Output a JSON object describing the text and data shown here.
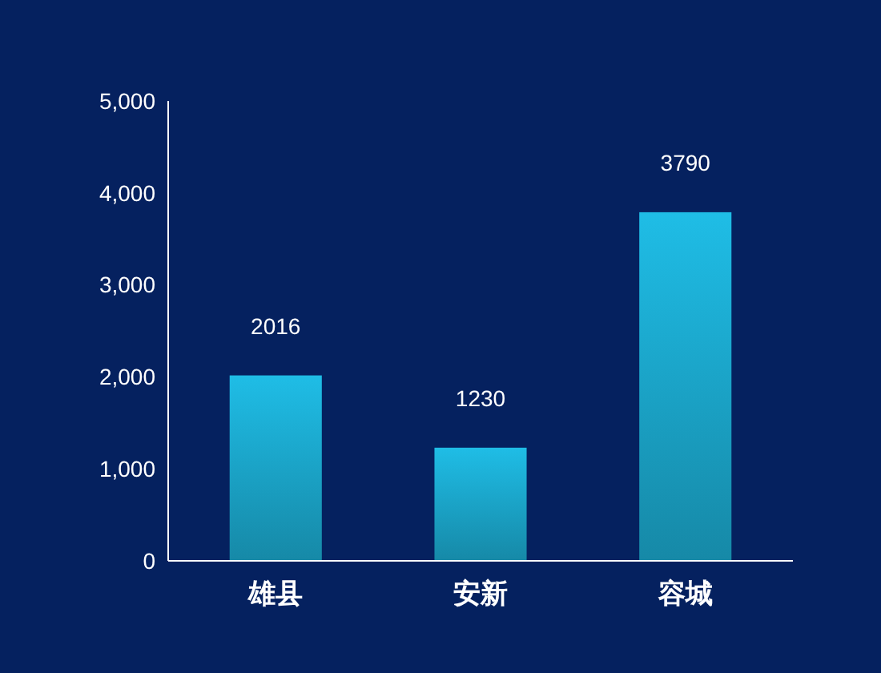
{
  "chart_data": {
    "type": "bar",
    "categories": [
      "雄县",
      "安新",
      "容城"
    ],
    "values": [
      2016,
      1230,
      3790
    ],
    "color": "#1fbde6",
    "ylim": [
      0,
      5000
    ],
    "yticks": [
      {
        "value": 0,
        "label": "0"
      },
      {
        "value": 1000,
        "label": "1,000"
      },
      {
        "value": 2000,
        "label": "2,000"
      },
      {
        "value": 3000,
        "label": "3,000"
      },
      {
        "value": 4000,
        "label": "4,000"
      },
      {
        "value": 5000,
        "label": "5,000"
      }
    ],
    "data_labels": true,
    "grid": false
  }
}
